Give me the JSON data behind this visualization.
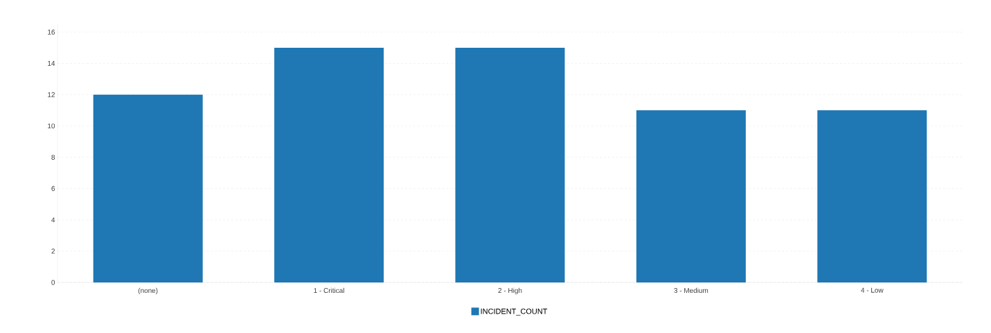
{
  "chart_data": {
    "type": "bar",
    "categories": [
      "(none)",
      "1 - Critical",
      "2 - High",
      "3 - Medium",
      "4 - Low"
    ],
    "series": [
      {
        "name": "INCIDENT_COUNT",
        "color": "#1f77b4",
        "values": [
          12,
          15,
          15,
          11,
          11
        ]
      }
    ],
    "ylim": [
      0,
      16.5
    ],
    "yticks": [
      0,
      2,
      4,
      6,
      8,
      10,
      12,
      14,
      16
    ],
    "grid": "y",
    "legend": "bottom"
  }
}
